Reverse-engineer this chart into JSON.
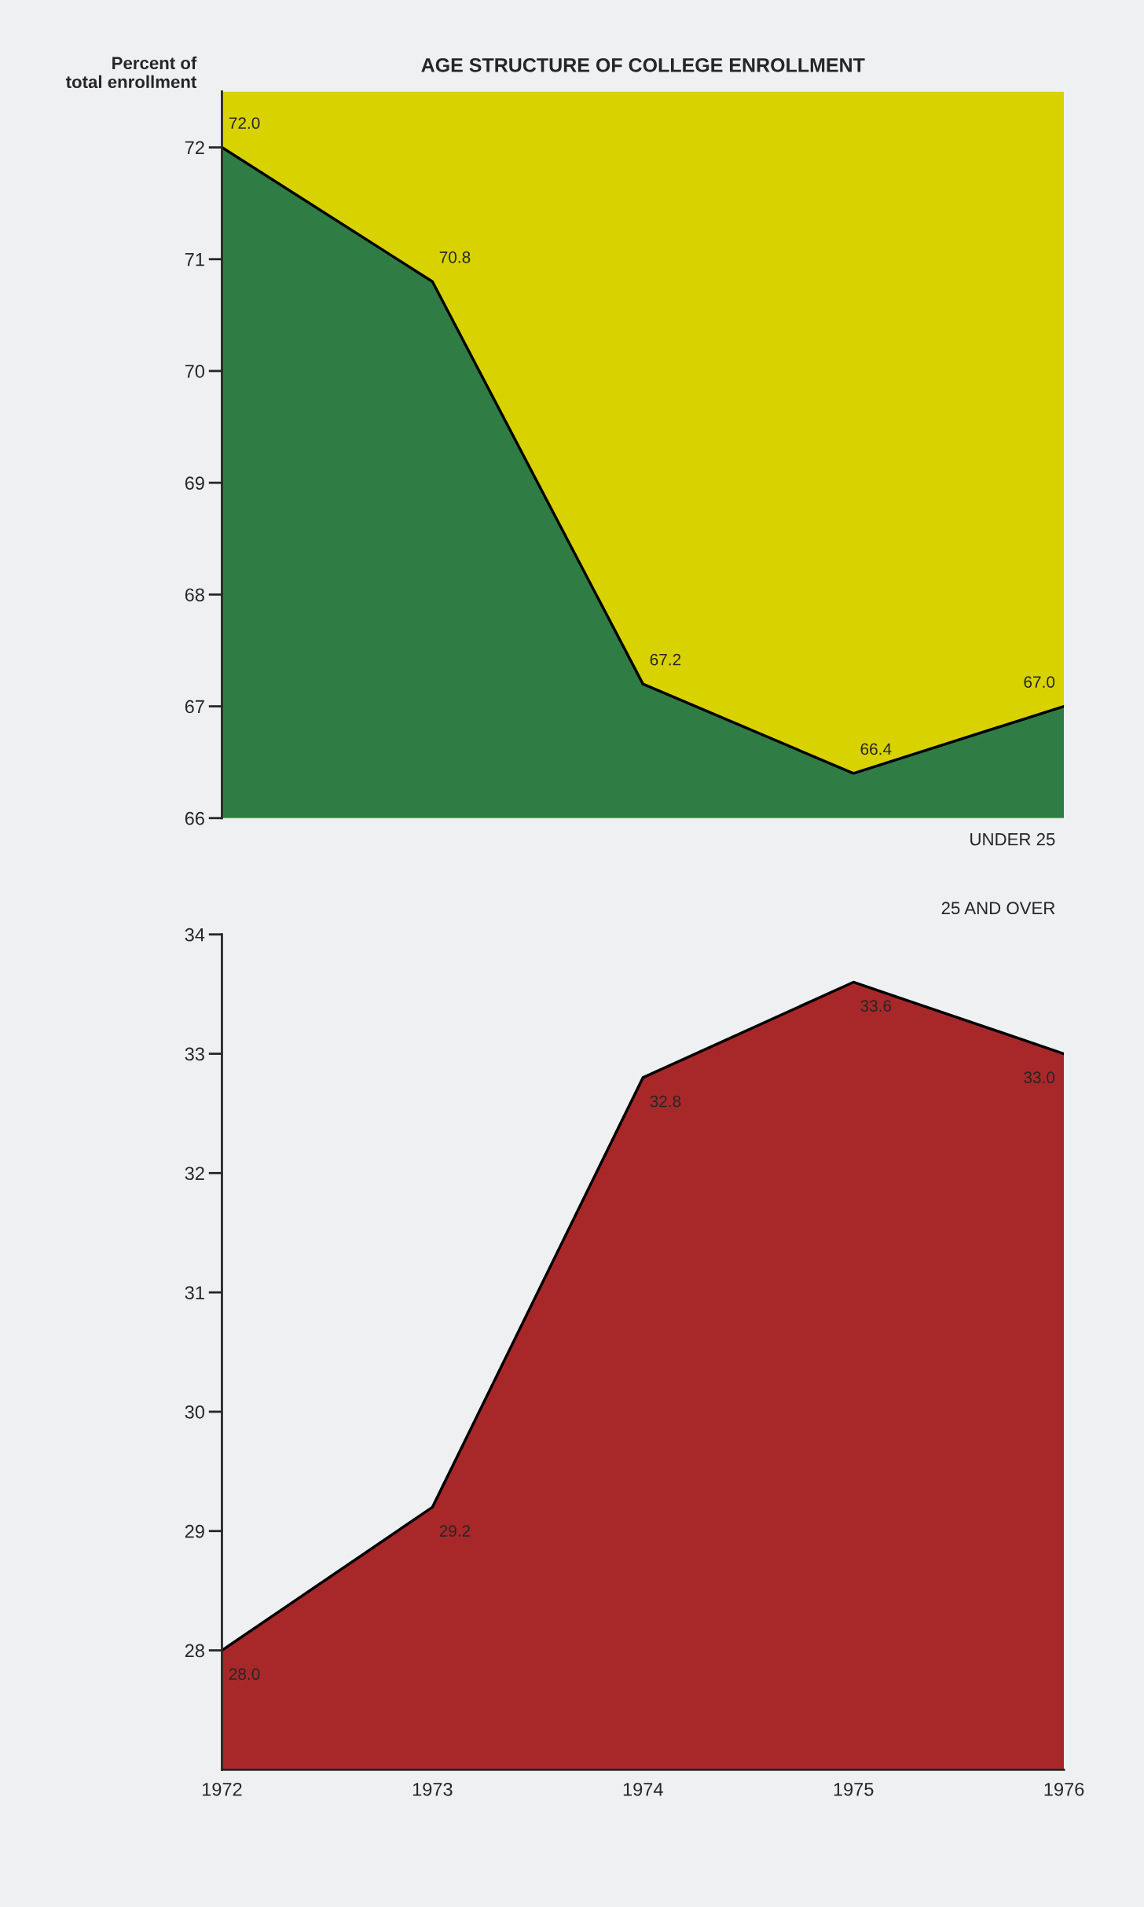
{
  "chart_data": [
    {
      "type": "area",
      "title": "AGE STRUCTURE OF COLLEGE ENROLLMENT",
      "ylabel": "Percent of total enrollment",
      "x": [
        1972,
        1973,
        1974,
        1975,
        1976
      ],
      "series": [
        {
          "name": "UNDER 25",
          "color": "#2f7d45",
          "values": [
            72.0,
            70.8,
            67.2,
            66.4,
            67.0
          ],
          "value_labels": [
            "72.0",
            "70.8",
            "67.2",
            "66.4",
            "67.0"
          ]
        }
      ],
      "xlim": [
        1972,
        1976
      ],
      "ylim": [
        66,
        72.5
      ],
      "yticks": [
        66,
        67,
        68,
        69,
        70,
        71,
        72
      ],
      "tick_labels": "y",
      "grid": false,
      "legend": false,
      "bands": [
        {
          "axis": "y",
          "from": 66,
          "to": 72.5,
          "color": "#d8d200"
        }
      ]
    },
    {
      "type": "area",
      "x": [
        1972,
        1973,
        1974,
        1975,
        1976
      ],
      "series": [
        {
          "name": "25 AND OVER",
          "color": "#a8282a",
          "values": [
            28.0,
            29.2,
            32.8,
            33.6,
            33.0
          ],
          "value_labels": [
            "28.0",
            "29.2",
            "32.8",
            "33.6",
            "33.0"
          ]
        }
      ],
      "xlim": [
        1972,
        1976
      ],
      "ylim": [
        27,
        34
      ],
      "yticks": [
        28,
        29,
        30,
        31,
        32,
        33,
        34
      ],
      "xticks": [
        1972,
        1973,
        1974,
        1975,
        1976
      ],
      "grid": false,
      "legend": false
    }
  ]
}
